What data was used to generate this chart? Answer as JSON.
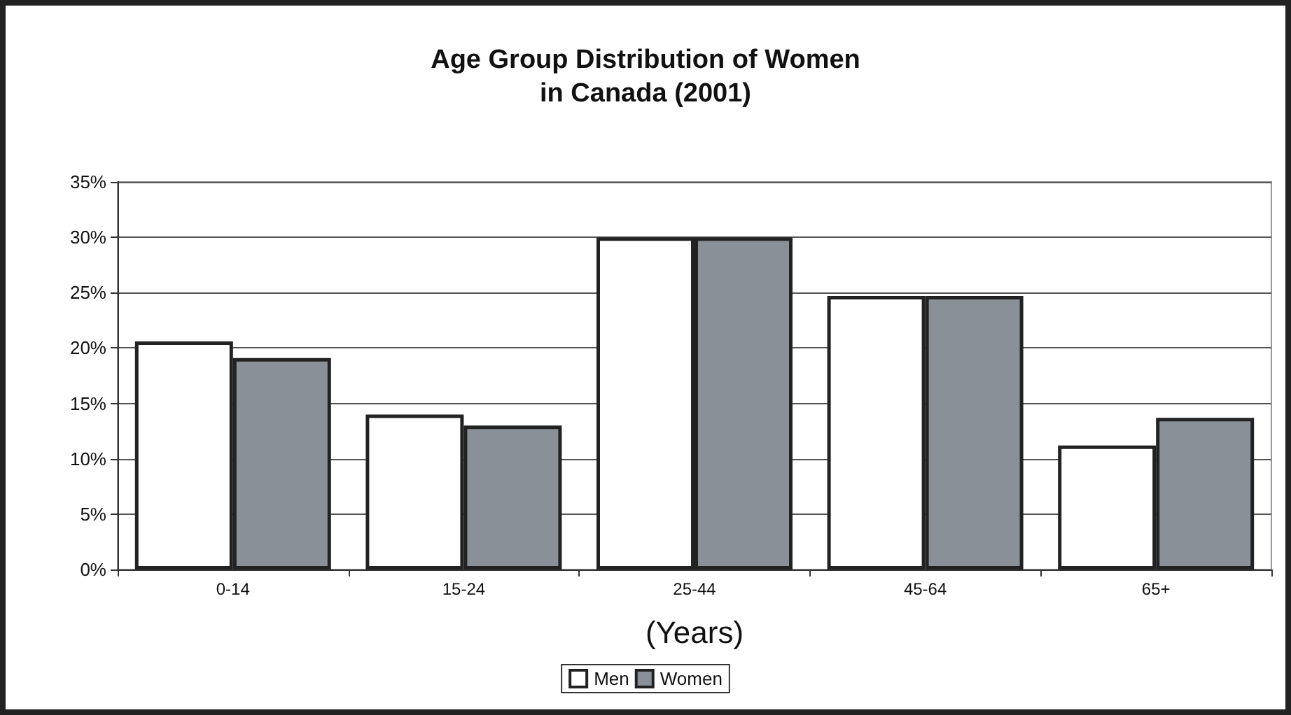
{
  "chart_data": {
    "type": "bar",
    "title": "Age Group Distribution of Women\nin Canada (2001)",
    "xlabel": "(Years)",
    "categories": [
      "0-14",
      "15-24",
      "25-44",
      "45-64",
      "65+"
    ],
    "series": [
      {
        "name": "Men",
        "color": "#ffffff",
        "values": [
          20.6,
          14.0,
          30.0,
          24.7,
          11.2
        ]
      },
      {
        "name": "Women",
        "color": "#8a9097",
        "values": [
          19.1,
          13.0,
          30.0,
          24.7,
          13.7
        ]
      }
    ],
    "ylim": [
      0,
      35
    ],
    "yticks": [
      {
        "value": 0,
        "label": "0%"
      },
      {
        "value": 5,
        "label": "5%"
      },
      {
        "value": 10,
        "label": "10%"
      },
      {
        "value": 15,
        "label": "15%"
      },
      {
        "value": 20,
        "label": "20%"
      },
      {
        "value": 25,
        "label": "25%"
      },
      {
        "value": 30,
        "label": "30%"
      },
      {
        "value": 35,
        "label": "35%"
      }
    ],
    "grid": "y",
    "legend": "bottom"
  }
}
